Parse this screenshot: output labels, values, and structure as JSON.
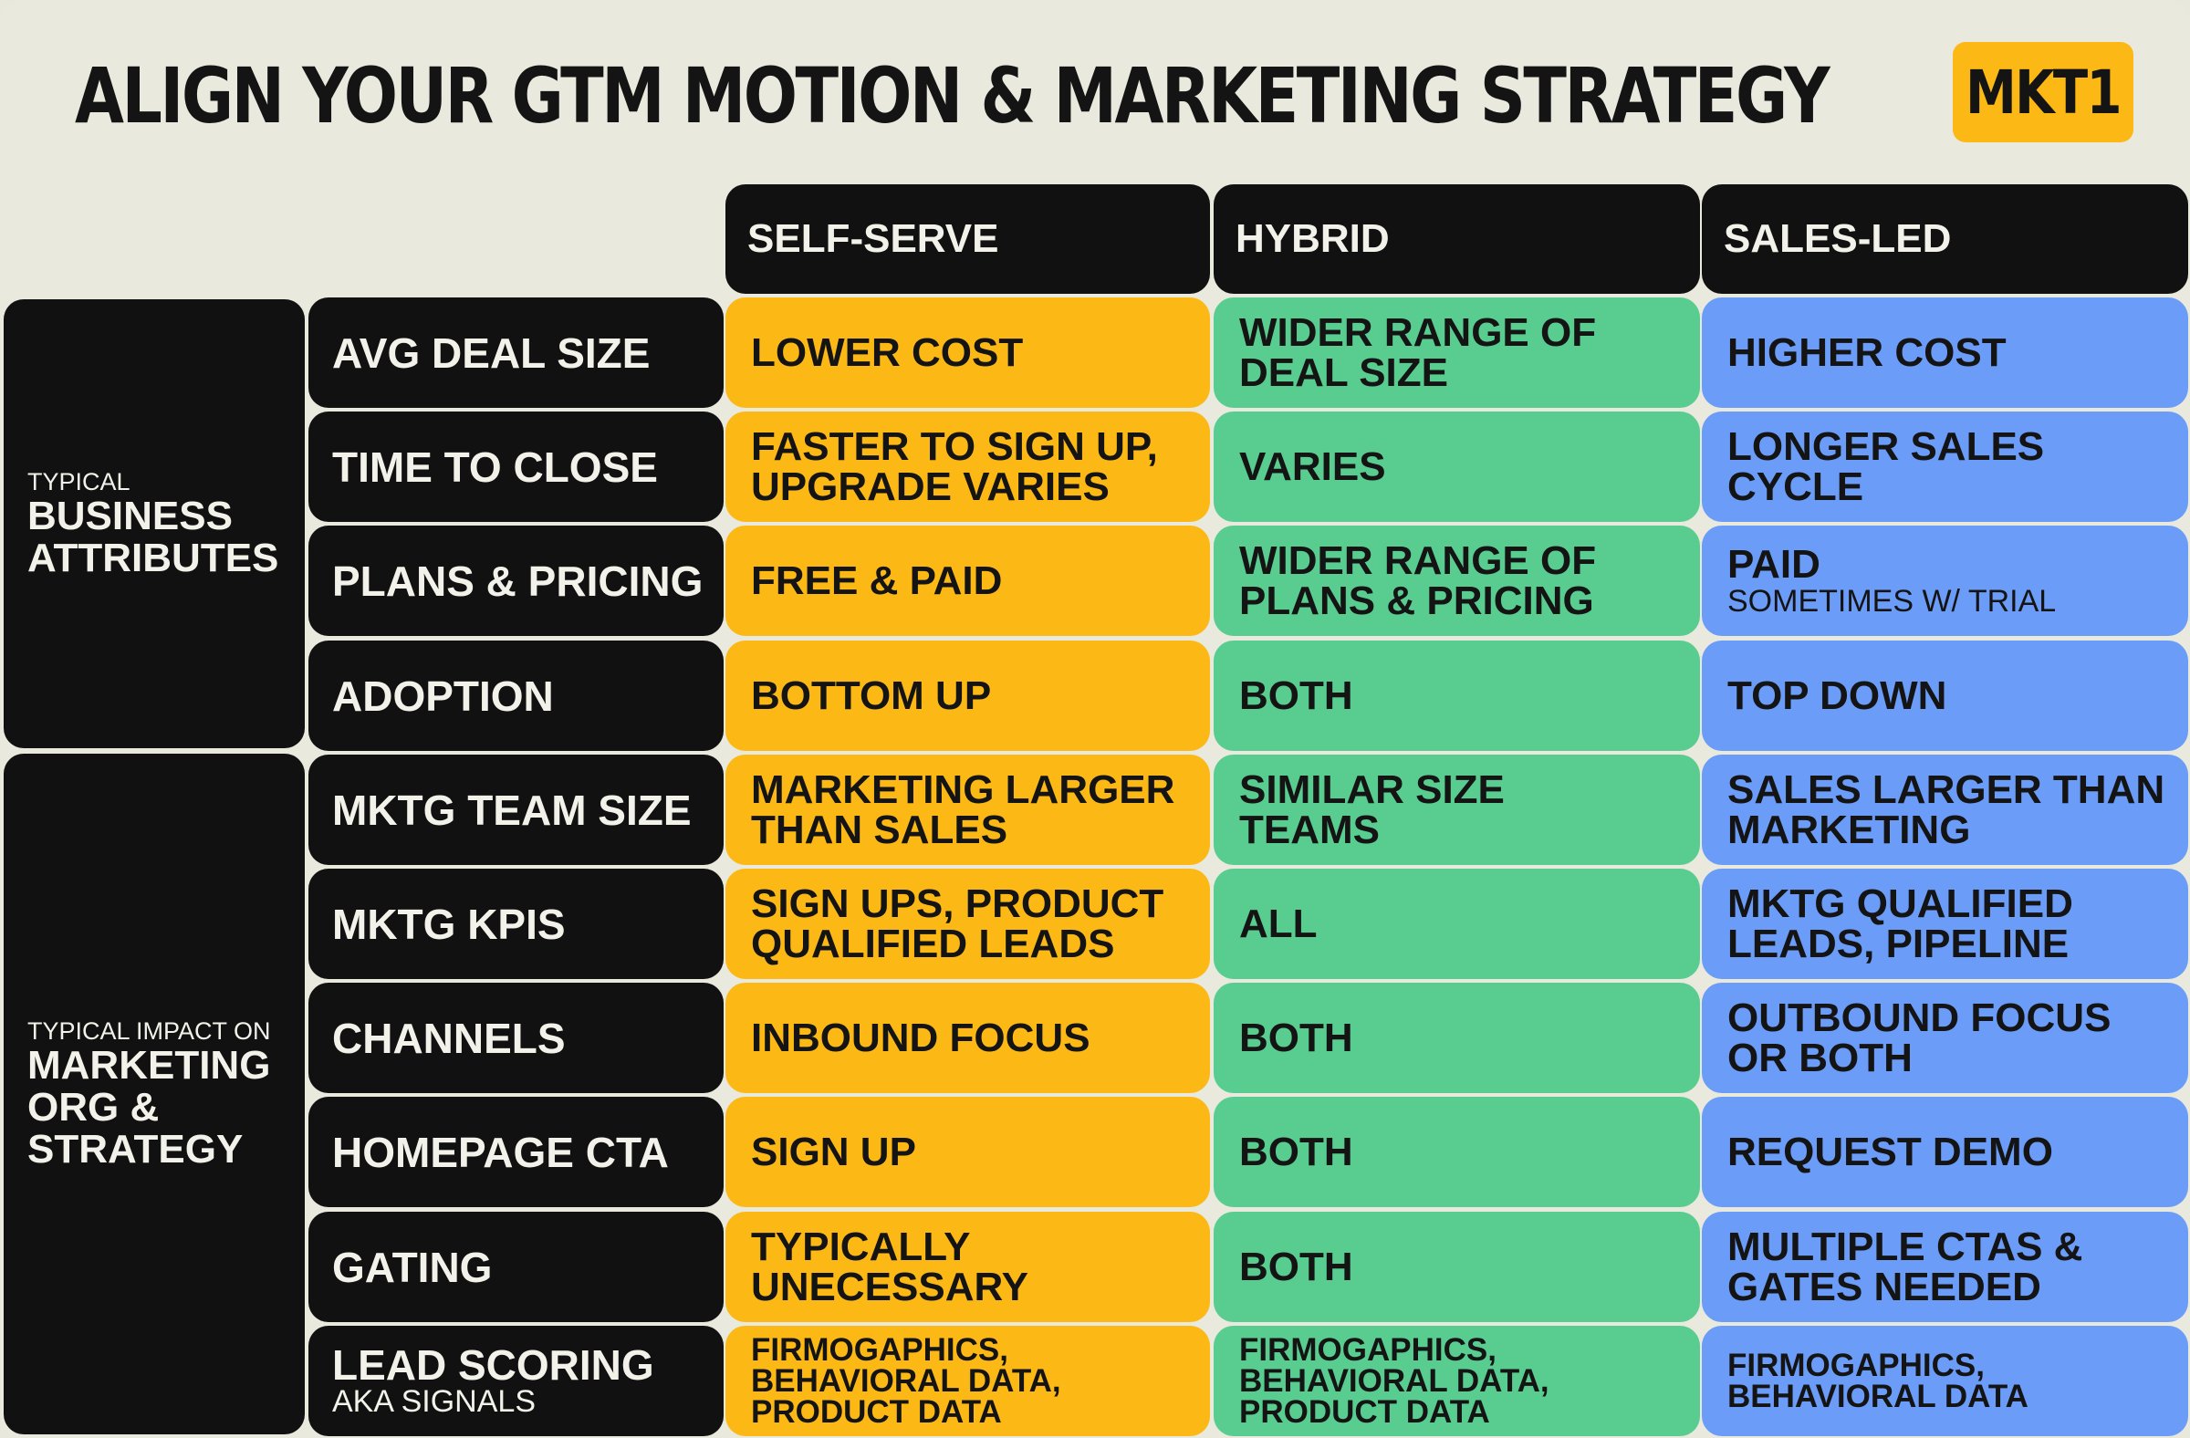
{
  "title": "ALIGN YOUR GTM MOTION & MARKETING STRATEGY",
  "logo": "MKT1",
  "columns": [
    "SELF-SERVE",
    "HYBRID",
    "SALES-LED"
  ],
  "groups": [
    {
      "small": "TYPICAL",
      "big": [
        "BUSINESS",
        "ATTRIBUTES"
      ]
    },
    {
      "small": "TYPICAL IMPACT ON",
      "big": [
        "MARKETING",
        "ORG &",
        "STRATEGY"
      ]
    }
  ],
  "rows": [
    {
      "label": "AVG DEAL SIZE",
      "self_serve": [
        "LOWER COST"
      ],
      "hybrid": [
        "WIDER RANGE OF",
        "DEAL SIZE"
      ],
      "sales_led": [
        "HIGHER COST"
      ]
    },
    {
      "label": "TIME TO CLOSE",
      "self_serve": [
        "FASTER TO SIGN UP,",
        "UPGRADE VARIES"
      ],
      "hybrid": [
        "VARIES"
      ],
      "sales_led": [
        "LONGER SALES",
        "CYCLE"
      ]
    },
    {
      "label": "PLANS & PRICING",
      "self_serve": [
        "FREE & PAID"
      ],
      "hybrid": [
        "WIDER RANGE OF",
        "PLANS & PRICING"
      ],
      "sales_led": [
        "PAID"
      ],
      "sales_led_sub": "SOMETIMES W/ TRIAL"
    },
    {
      "label": "ADOPTION",
      "self_serve": [
        "BOTTOM UP"
      ],
      "hybrid": [
        "BOTH"
      ],
      "sales_led": [
        "TOP DOWN"
      ]
    },
    {
      "label": "MKTG TEAM SIZE",
      "self_serve": [
        "MARKETING LARGER",
        "THAN SALES"
      ],
      "hybrid": [
        "SIMILAR SIZE",
        "TEAMS"
      ],
      "sales_led": [
        "SALES LARGER THAN",
        "MARKETING"
      ]
    },
    {
      "label": "MKTG KPIS",
      "self_serve": [
        "SIGN UPS, PRODUCT",
        "QUALIFIED LEADS"
      ],
      "hybrid": [
        "ALL"
      ],
      "sales_led": [
        "MKTG QUALIFIED",
        "LEADS, PIPELINE"
      ]
    },
    {
      "label": "CHANNELS",
      "self_serve": [
        "INBOUND FOCUS"
      ],
      "hybrid": [
        "BOTH"
      ],
      "sales_led": [
        "OUTBOUND FOCUS",
        "OR BOTH"
      ]
    },
    {
      "label": "HOMEPAGE CTA",
      "self_serve": [
        "SIGN UP"
      ],
      "hybrid": [
        "BOTH"
      ],
      "sales_led": [
        "REQUEST DEMO"
      ]
    },
    {
      "label": "GATING",
      "self_serve": [
        "TYPICALLY",
        "UNECESSARY"
      ],
      "hybrid": [
        "BOTH"
      ],
      "sales_led": [
        "MULTIPLE CTAS &",
        "GATES NEEDED"
      ]
    },
    {
      "label": "LEAD SCORING",
      "label_sub": "AKA SIGNALS",
      "self_serve": [
        "FIRMOGAPHICS,",
        "BEHAVIORAL DATA,",
        "PRODUCT DATA"
      ],
      "hybrid": [
        "FIRMOGAPHICS,",
        "BEHAVIORAL DATA,",
        "PRODUCT DATA"
      ],
      "sales_led": [
        "FIRMOGAPHICS,",
        "BEHAVIORAL DATA"
      ]
    }
  ]
}
